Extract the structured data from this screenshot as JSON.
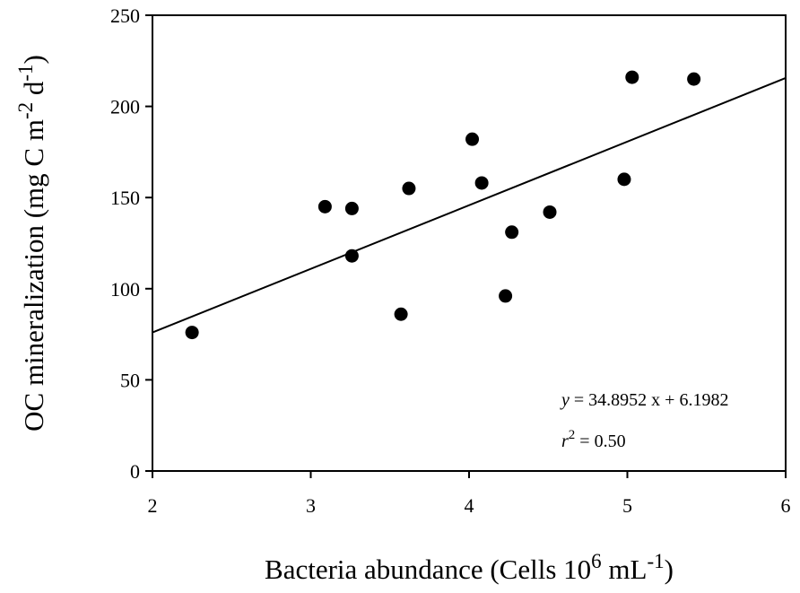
{
  "chart_data": {
    "type": "scatter",
    "title": "",
    "xlabel": {
      "main": "Bacteria abundance (Cells 10",
      "sup1": "6",
      "mid": " mL",
      "sup2": "-1",
      "end": ")"
    },
    "ylabel": {
      "main": "OC mineralization (mg C m",
      "sup1": "-2",
      "mid": " d",
      "sup2": "-1",
      "end": ")"
    },
    "xlim": [
      2,
      6
    ],
    "ylim": [
      0,
      250
    ],
    "x_ticks": [
      "2",
      "3",
      "4",
      "5",
      "6"
    ],
    "y_ticks": [
      "0",
      "50",
      "100",
      "150",
      "200",
      "250"
    ],
    "grid": false,
    "series": [
      {
        "points": [
          {
            "x": 2.25,
            "y": 76
          },
          {
            "x": 3.09,
            "y": 145
          },
          {
            "x": 3.26,
            "y": 144
          },
          {
            "x": 3.26,
            "y": 118
          },
          {
            "x": 3.57,
            "y": 86
          },
          {
            "x": 3.62,
            "y": 155
          },
          {
            "x": 4.02,
            "y": 182
          },
          {
            "x": 4.08,
            "y": 158
          },
          {
            "x": 4.23,
            "y": 96
          },
          {
            "x": 4.27,
            "y": 131
          },
          {
            "x": 4.51,
            "y": 142
          },
          {
            "x": 4.98,
            "y": 160
          },
          {
            "x": 5.03,
            "y": 216
          },
          {
            "x": 5.42,
            "y": 215
          }
        ]
      }
    ],
    "regression": {
      "slope": 34.8952,
      "intercept": 6.1982,
      "equation_var": "y",
      "equation_rest": " = 34.8952 x + 6.1982",
      "r2_var": "r",
      "r2_sup": "2",
      "r2_rest": " = 0.50"
    }
  }
}
